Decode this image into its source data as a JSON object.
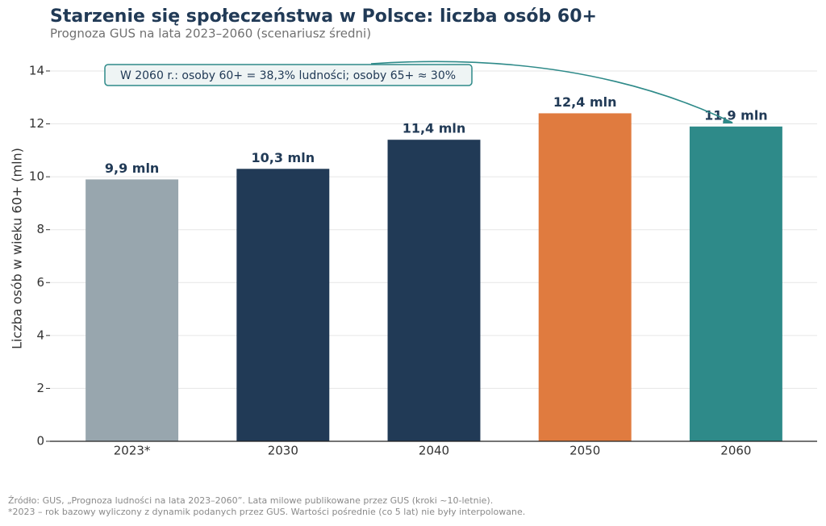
{
  "chart_data": {
    "type": "bar",
    "title": "Starzenie się społeczeństwa w Polsce: liczba osób 60+",
    "subtitle": "Prognoza GUS na lata 2023–2060 (scenariusz średni)",
    "y_label": "Liczba osób w wieku 60+ (mln)",
    "categories": [
      "2023*",
      "2030",
      "2040",
      "2050",
      "2060"
    ],
    "values": [
      9.9,
      10.3,
      11.4,
      12.4,
      11.9
    ],
    "value_labels": [
      "9,9 mln",
      "10,3 mln",
      "11,4 mln",
      "12,4 mln",
      "11,9 mln"
    ],
    "colors": [
      "#98a6ae",
      "#213a56",
      "#213a56",
      "#e07b3f",
      "#2e8a89"
    ],
    "ylim": [
      0,
      14.6
    ],
    "yticks": [
      0,
      2,
      4,
      6,
      8,
      10,
      12,
      14
    ],
    "grid": true,
    "annotation": "W 2060 r.: osoby 60+ = 38,3% ludności;  osoby 65+ ≈ 30%",
    "footnotes": [
      "Źródło: GUS, „Prognoza ludności na lata 2023–2060”. Lata milowe publikowane przez GUS (kroki ~10-letnie).",
      "*2023 – rok bazowy wyliczony z dynamik podanych przez GUS. Wartości pośrednie (co 5 lat) nie były interpolowane."
    ]
  }
}
